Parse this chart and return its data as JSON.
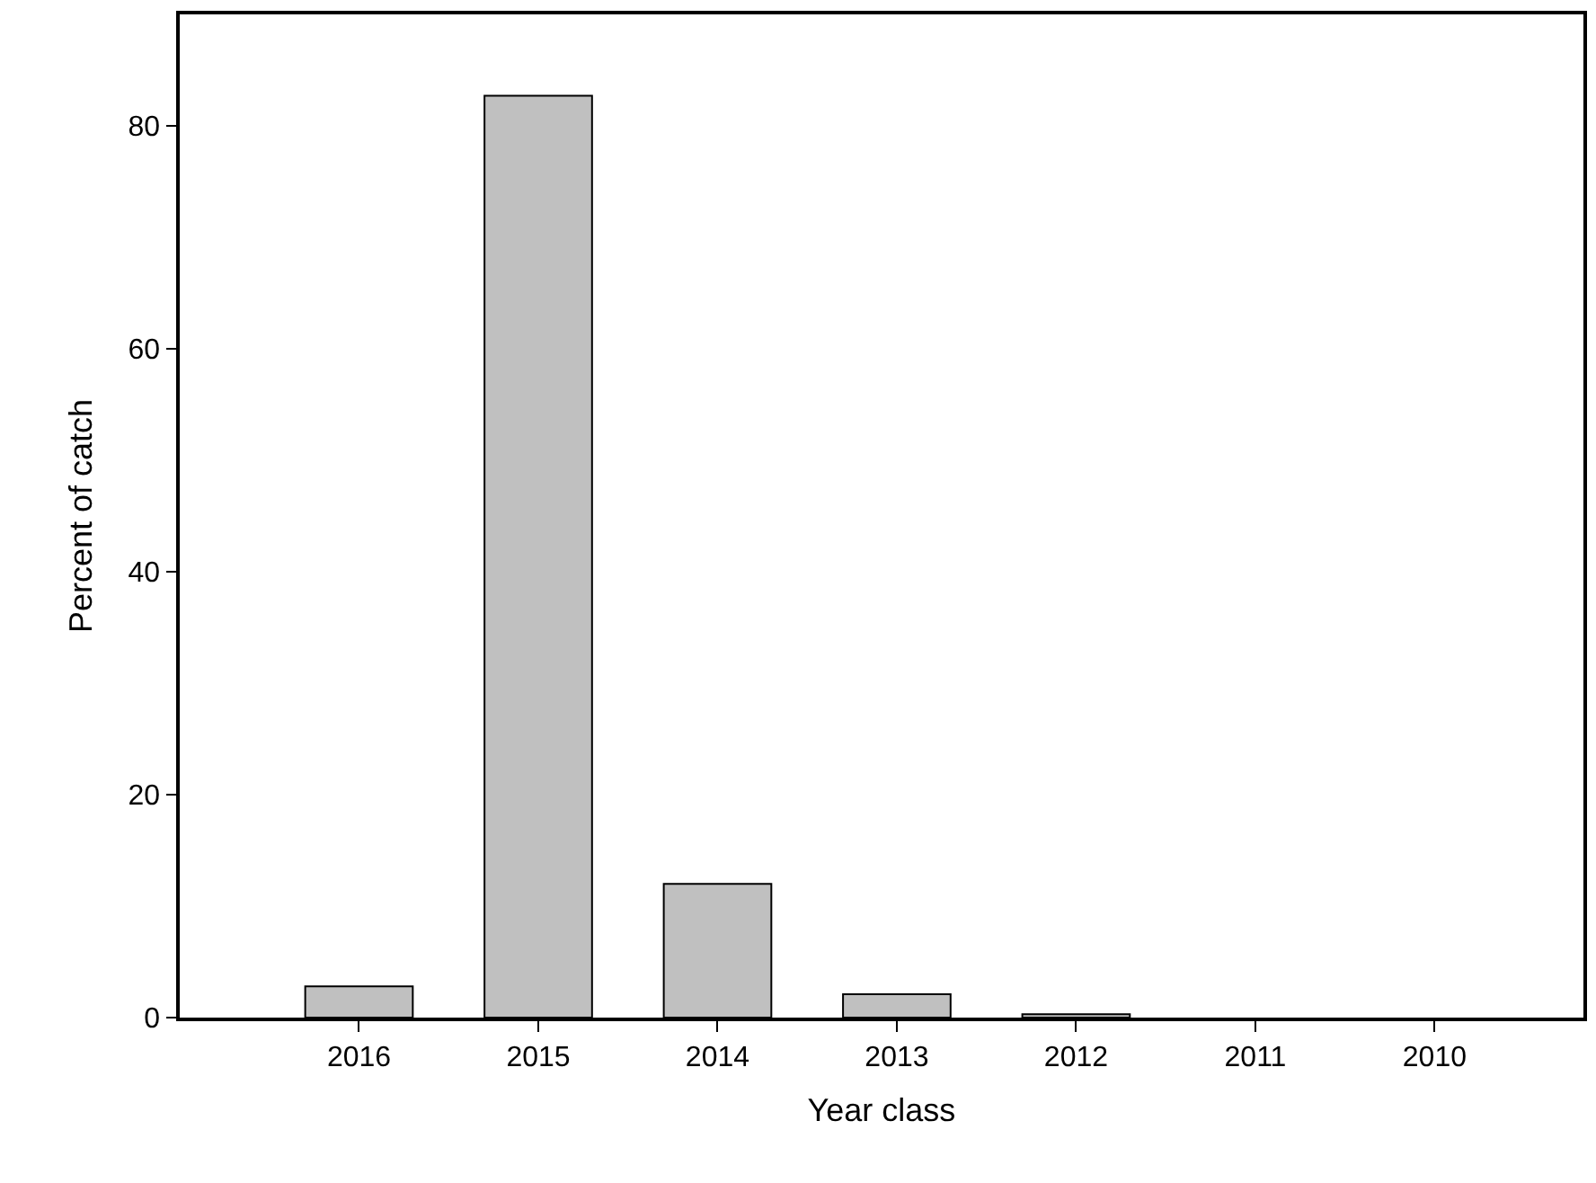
{
  "chart_data": {
    "type": "bar",
    "xlabel": "Year class",
    "ylabel": "Percent of catch",
    "categories": [
      "2016",
      "2015",
      "2014",
      "2013",
      "2012",
      "2011",
      "2010"
    ],
    "values": [
      2.8,
      82.7,
      12.0,
      2.1,
      0.3,
      0,
      0
    ],
    "color": "#c0c0c0",
    "ylim": [
      0,
      90
    ],
    "yticks": [
      0,
      20,
      40,
      60,
      80
    ]
  }
}
